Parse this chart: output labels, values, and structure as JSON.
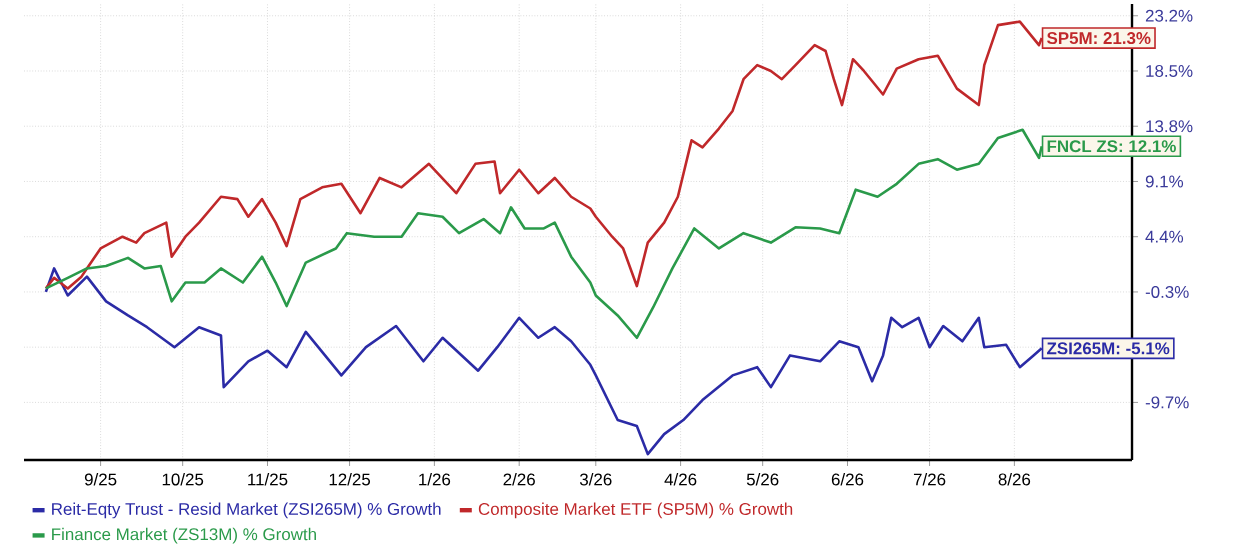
{
  "chart_data": {
    "type": "line",
    "xlim": [
      "2025-08-18",
      "2026-09-27"
    ],
    "ylim": [
      -14.6,
      24.2
    ],
    "xticks": [
      {
        "value": "2025-09-15",
        "label": "9/25"
      },
      {
        "value": "2025-10-15",
        "label": "10/25"
      },
      {
        "value": "2025-11-15",
        "label": "11/25"
      },
      {
        "value": "2025-12-15",
        "label": "12/25"
      },
      {
        "value": "2026-01-15",
        "label": "1/26"
      },
      {
        "value": "2026-02-15",
        "label": "2/26"
      },
      {
        "value": "2026-03-15",
        "label": "3/26"
      },
      {
        "value": "2026-04-15",
        "label": "4/26"
      },
      {
        "value": "2026-05-15",
        "label": "5/26"
      },
      {
        "value": "2026-06-15",
        "label": "6/26"
      },
      {
        "value": "2026-07-15",
        "label": "7/26"
      },
      {
        "value": "2026-08-15",
        "label": "8/26"
      }
    ],
    "yticks": [
      {
        "value": -9.7,
        "label": "-9.7%"
      },
      {
        "value": -5.0,
        "label": null
      },
      {
        "value": -0.3,
        "label": "-0.3%"
      },
      {
        "value": 4.4,
        "label": "4.4%"
      },
      {
        "value": 9.1,
        "label": "9.1%"
      },
      {
        "value": 13.8,
        "label": "13.8%"
      },
      {
        "value": 18.5,
        "label": "18.5%"
      },
      {
        "value": 23.2,
        "label": "23.2%"
      }
    ],
    "grid": true,
    "legend": "bottom",
    "marker": "none",
    "line_style": "solid",
    "series": [
      {
        "name": "Reit-Eqty Trust - Resid Market (ZSI265M) % Growth",
        "color": "#2b2ba6",
        "x": [
          "2025-08-26",
          "2025-08-29",
          "2025-09-03",
          "2025-09-10",
          "2025-09-17",
          "2025-09-25",
          "2025-10-02",
          "2025-10-12",
          "2025-10-21",
          "2025-10-29",
          "2025-10-30",
          "2025-11-08",
          "2025-11-15",
          "2025-11-22",
          "2025-11-29",
          "2025-12-12",
          "2025-12-21",
          "2026-01-01",
          "2026-01-11",
          "2026-01-18",
          "2026-01-31",
          "2026-02-07",
          "2026-02-15",
          "2026-02-22",
          "2026-02-28",
          "2026-03-06",
          "2026-03-13",
          "2026-03-15",
          "2026-03-23",
          "2026-03-30",
          "2026-04-03",
          "2026-04-09",
          "2026-04-16",
          "2026-04-23",
          "2026-05-04",
          "2026-05-13",
          "2026-05-18",
          "2026-05-25",
          "2026-06-05",
          "2026-06-12",
          "2026-06-19",
          "2026-06-24",
          "2026-06-28",
          "2026-07-01",
          "2026-07-05",
          "2026-07-11",
          "2026-07-15",
          "2026-07-20",
          "2026-07-27",
          "2026-08-02",
          "2026-08-04",
          "2026-08-12",
          "2026-08-17",
          "2026-08-22",
          "2026-08-25"
        ],
        "values": [
          -0.3,
          1.7,
          -0.6,
          1.0,
          -1.1,
          -2.3,
          -3.3,
          -5.0,
          -3.3,
          -4.0,
          -8.4,
          -6.2,
          -5.3,
          -6.7,
          -3.7,
          -7.4,
          -5.0,
          -3.2,
          -6.2,
          -4.2,
          -7.0,
          -5.0,
          -2.5,
          -4.2,
          -3.3,
          -4.5,
          -6.5,
          -7.4,
          -11.2,
          -11.7,
          -14.1,
          -12.4,
          -11.2,
          -9.5,
          -7.4,
          -6.7,
          -8.4,
          -5.7,
          -6.2,
          -4.5,
          -5.0,
          -7.9,
          -5.7,
          -2.5,
          -3.3,
          -2.5,
          -5.0,
          -3.2,
          -4.5,
          -2.5,
          -5.0,
          -4.8,
          -6.7,
          -5.7,
          -5.1
        ]
      },
      {
        "name": "Composite Market ETF (SP5M) % Growth",
        "color": "#c0282a",
        "x": [
          "2025-08-26",
          "2025-08-29",
          "2025-09-03",
          "2025-09-08",
          "2025-09-10",
          "2025-09-15",
          "2025-09-23",
          "2025-09-28",
          "2025-10-01",
          "2025-10-09",
          "2025-10-11",
          "2025-10-16",
          "2025-10-21",
          "2025-10-29",
          "2025-11-04",
          "2025-11-08",
          "2025-11-13",
          "2025-11-18",
          "2025-11-22",
          "2025-11-27",
          "2025-12-05",
          "2025-12-12",
          "2025-12-19",
          "2025-12-26",
          "2026-01-03",
          "2026-01-13",
          "2026-01-23",
          "2026-01-30",
          "2026-02-06",
          "2026-02-08",
          "2026-02-15",
          "2026-02-22",
          "2026-02-28",
          "2026-03-06",
          "2026-03-13",
          "2026-03-15",
          "2026-03-21",
          "2026-03-25",
          "2026-03-30",
          "2026-04-03",
          "2026-04-09",
          "2026-04-14",
          "2026-04-19",
          "2026-04-23",
          "2026-04-29",
          "2026-05-04",
          "2026-05-08",
          "2026-05-13",
          "2026-05-18",
          "2026-05-22",
          "2026-05-27",
          "2026-06-03",
          "2026-06-07",
          "2026-06-10",
          "2026-06-13",
          "2026-06-17",
          "2026-06-21",
          "2026-06-28",
          "2026-07-03",
          "2026-07-11",
          "2026-07-18",
          "2026-07-25",
          "2026-08-02",
          "2026-08-04",
          "2026-08-09",
          "2026-08-17",
          "2026-08-24",
          "2026-08-25"
        ],
        "values": [
          0.0,
          0.9,
          0.0,
          1.0,
          1.7,
          3.4,
          4.4,
          3.9,
          4.7,
          5.6,
          2.7,
          4.4,
          5.6,
          7.8,
          7.6,
          6.1,
          7.6,
          5.6,
          3.6,
          7.6,
          8.6,
          8.9,
          6.4,
          9.4,
          8.6,
          10.6,
          8.1,
          10.6,
          10.8,
          8.1,
          10.1,
          8.1,
          9.4,
          7.8,
          6.8,
          6.1,
          4.4,
          3.4,
          0.2,
          3.9,
          5.6,
          7.8,
          12.6,
          12.0,
          13.6,
          15.1,
          17.8,
          19.0,
          18.5,
          17.8,
          19.0,
          20.7,
          20.2,
          17.8,
          15.6,
          19.5,
          18.5,
          16.5,
          18.7,
          19.5,
          19.8,
          17.0,
          15.6,
          19.0,
          22.4,
          22.7,
          20.7,
          21.3
        ]
      },
      {
        "name": "Finance Market (ZS13M) % Growth",
        "color": "#2a9a4a",
        "x": [
          "2025-08-26",
          "2025-09-03",
          "2025-09-10",
          "2025-09-17",
          "2025-09-25",
          "2025-10-01",
          "2025-10-07",
          "2025-10-11",
          "2025-10-16",
          "2025-10-23",
          "2025-10-29",
          "2025-11-06",
          "2025-11-13",
          "2025-11-18",
          "2025-11-22",
          "2025-11-29",
          "2025-12-10",
          "2025-12-14",
          "2025-12-24",
          "2026-01-03",
          "2026-01-09",
          "2026-01-18",
          "2026-01-24",
          "2026-02-02",
          "2026-02-08",
          "2026-02-12",
          "2026-02-17",
          "2026-02-24",
          "2026-02-28",
          "2026-03-06",
          "2026-03-13",
          "2026-03-15",
          "2026-03-23",
          "2026-03-30",
          "2026-04-05",
          "2026-04-12",
          "2026-04-20",
          "2026-04-29",
          "2026-05-08",
          "2026-05-18",
          "2026-05-27",
          "2026-06-05",
          "2026-06-12",
          "2026-06-18",
          "2026-06-26",
          "2026-07-03",
          "2026-07-11",
          "2026-07-18",
          "2026-07-25",
          "2026-08-02",
          "2026-08-09",
          "2026-08-18",
          "2026-08-24",
          "2026-08-25"
        ],
        "values": [
          0.0,
          0.9,
          1.7,
          1.9,
          2.6,
          1.7,
          1.9,
          -1.1,
          0.5,
          0.5,
          1.7,
          0.5,
          2.7,
          0.5,
          -1.5,
          2.2,
          3.4,
          4.7,
          4.4,
          4.4,
          6.4,
          6.1,
          4.7,
          5.9,
          4.7,
          6.9,
          5.1,
          5.1,
          5.6,
          2.7,
          0.5,
          -0.6,
          -2.3,
          -4.2,
          -1.6,
          1.7,
          5.1,
          3.4,
          4.7,
          3.9,
          5.2,
          5.1,
          4.7,
          8.4,
          7.8,
          8.9,
          10.6,
          11.0,
          10.1,
          10.6,
          12.8,
          13.5,
          11.1,
          12.1
        ]
      }
    ],
    "annotations": [
      {
        "text": "ZSI265M: -5.1%",
        "x": "2026-08-25",
        "y": -5.1
      },
      {
        "text": "SP5M: 21.3%",
        "x": "2026-08-25",
        "y": 21.3
      },
      {
        "text": "FNCL ZS: 12.1%",
        "x": "2026-08-25",
        "y": 12.1
      }
    ]
  }
}
